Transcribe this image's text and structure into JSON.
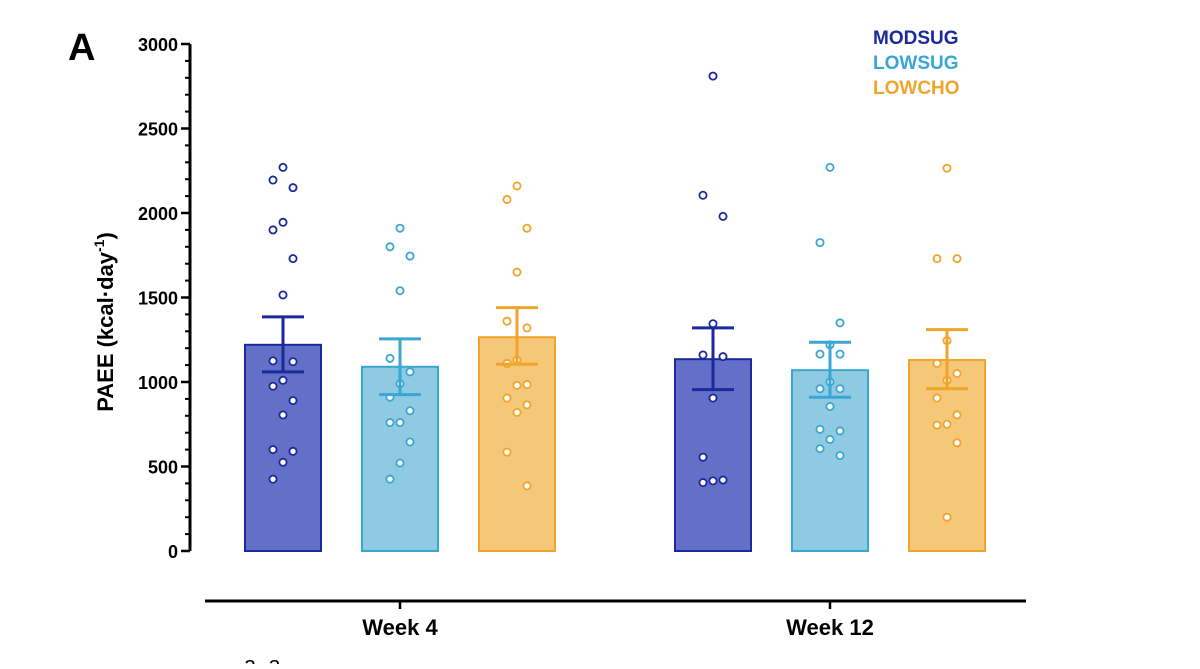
{
  "chart_data": {
    "type": "bar",
    "panel_label": "A",
    "title": "",
    "xlabel": "",
    "ylabel_main": "PAEE (kcal·day",
    "ylabel_sup": "-1",
    "ylabel_close": ")",
    "ylim": [
      0,
      3000
    ],
    "yticks": [
      0,
      500,
      1000,
      1500,
      2000,
      2500,
      3000
    ],
    "categories": [
      "Week 4",
      "Week 12"
    ],
    "series": [
      {
        "name": "MODSUG",
        "color": "#1a2a9c",
        "fill": "#6470c8",
        "values": [
          1220,
          1135
        ],
        "error": [
          [
            1060,
            1385
          ],
          [
            955,
            1320
          ]
        ],
        "points": [
          [
            2270,
            2195,
            2150,
            1945,
            1900,
            1730,
            1515,
            1125,
            1120,
            1010,
            975,
            890,
            805,
            600,
            590,
            525,
            425
          ],
          [
            2810,
            2105,
            1980,
            1345,
            1160,
            1150,
            905,
            555,
            420,
            415,
            405
          ]
        ]
      },
      {
        "name": "LOWSUG",
        "color": "#3aa6d4",
        "fill": "#8fcae3",
        "values": [
          1090,
          1070
        ],
        "error": [
          [
            925,
            1255
          ],
          [
            910,
            1235
          ]
        ],
        "points": [
          [
            1910,
            1800,
            1745,
            1540,
            1140,
            1060,
            990,
            910,
            830,
            760,
            760,
            645,
            520,
            425
          ],
          [
            2270,
            1825,
            1350,
            1220,
            1165,
            1165,
            1000,
            960,
            960,
            855,
            720,
            710,
            660,
            605,
            565
          ]
        ]
      },
      {
        "name": "LOWCHO",
        "color": "#f0a52a",
        "fill": "#f5c779",
        "values": [
          1265,
          1130
        ],
        "error": [
          [
            1105,
            1440
          ],
          [
            960,
            1310
          ]
        ],
        "points": [
          [
            2160,
            2080,
            1910,
            1650,
            1360,
            1320,
            1130,
            1110,
            985,
            980,
            905,
            865,
            820,
            585,
            385
          ],
          [
            2265,
            1730,
            1730,
            1245,
            1110,
            1050,
            1010,
            905,
            805,
            750,
            745,
            640,
            200
          ]
        ]
      }
    ],
    "legend_position": "top-right",
    "footer_marks": "a  a"
  }
}
